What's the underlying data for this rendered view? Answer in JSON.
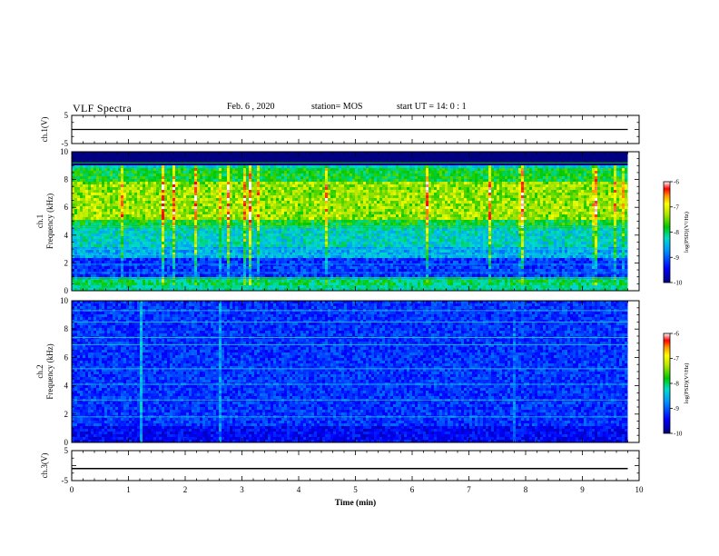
{
  "header": {
    "title": "VLF Spectra",
    "date": "Feb. 6 , 2020",
    "station": "station= MOS",
    "start": "start  UT =   14: 0  : 1"
  },
  "chart_data": [
    {
      "type": "line",
      "panel": "ch1-waveform",
      "ylabel": "ch.1(V)",
      "ylim": [
        -5,
        5
      ],
      "yticks": [
        "5",
        "-5"
      ],
      "xlim": [
        0,
        10
      ],
      "series": [
        {
          "x": [
            0,
            9.8
          ],
          "y": [
            0,
            0
          ]
        }
      ]
    },
    {
      "type": "heatmap",
      "panel": "ch1-spectrogram",
      "ylabel_channel": "ch.1",
      "ylabel": "Frequency  (kHz)",
      "ylim": [
        0,
        10
      ],
      "yticks": [
        "0",
        "2",
        "4",
        "6",
        "8",
        "10"
      ],
      "xlim": [
        0,
        10
      ],
      "data_extent_x": [
        0,
        9.8
      ],
      "colorbar": {
        "label": "log(PSD)(V²/Hz)",
        "range": [
          -10,
          -6
        ],
        "ticks": [
          "-6",
          "-7",
          "-8",
          "-9",
          "-10"
        ]
      },
      "features": {
        "background_log_psd": -8.3,
        "cutoff_above_kHz": 9.0,
        "band_kHz": [
          0.3,
          8.8
        ],
        "peak_band_kHz": [
          5.0,
          7.8
        ],
        "narrowband_lines_kHz": [
          0.9,
          1.3,
          1.9,
          2.6,
          3.0,
          4.6,
          9.2
        ]
      }
    },
    {
      "type": "heatmap",
      "panel": "ch2-spectrogram",
      "ylabel_channel": "ch.2",
      "ylabel": "Frequency  (kHz)",
      "ylim": [
        0,
        10
      ],
      "yticks": [
        "0",
        "2",
        "4",
        "6",
        "8",
        "10"
      ],
      "xlim": [
        0,
        10
      ],
      "data_extent_x": [
        0,
        9.8
      ],
      "colorbar": {
        "label": "log(PSD)(V²/Hz)",
        "range": [
          -10,
          -6
        ],
        "ticks": [
          "-6",
          "-7",
          "-8",
          "-9",
          "-10"
        ]
      },
      "features": {
        "background_log_psd": -9.2,
        "narrowband_lines_kHz": [
          1.8,
          3.0,
          4.1,
          5.2,
          6.9,
          7.4,
          8.5,
          9.3
        ]
      }
    },
    {
      "type": "line",
      "panel": "ch3-waveform",
      "ylabel": "ch.3(V)",
      "ylim": [
        -5,
        5
      ],
      "yticks": [
        "5",
        "-5"
      ],
      "xlim": [
        0,
        10
      ],
      "xlabel": "Time  (min)",
      "xticks": [
        "0",
        "1",
        "2",
        "3",
        "4",
        "5",
        "6",
        "7",
        "8",
        "9",
        "10"
      ],
      "series": [
        {
          "x": [
            0,
            9.8
          ],
          "y": [
            -1,
            -1
          ]
        }
      ]
    }
  ]
}
